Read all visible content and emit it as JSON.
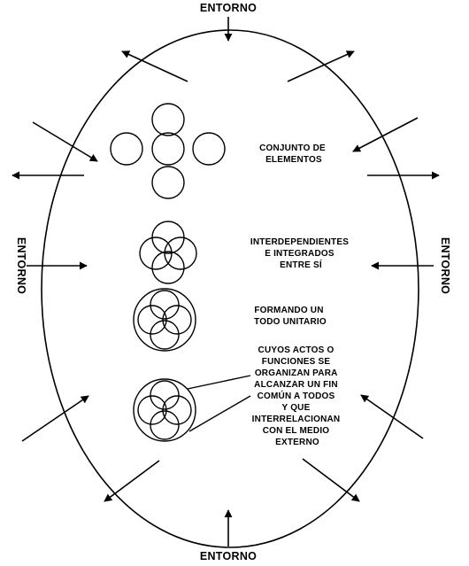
{
  "diagram": {
    "entorno": {
      "top": "ENTORNO",
      "bottom": "ENTORNO",
      "left": "ENTORNO",
      "right": "ENTORNO"
    },
    "stages": [
      {
        "name": "conjunto",
        "lines": [
          "CONJUNTO DE",
          "ELEMENTOS"
        ]
      },
      {
        "name": "interdependientes",
        "lines": [
          "INTERDEPENDIENTES",
          "E INTEGRADOS",
          "ENTRE SÍ"
        ]
      },
      {
        "name": "todo-unitario",
        "lines": [
          "FORMANDO UN",
          "TODO UNITARIO"
        ]
      },
      {
        "name": "fin-comun",
        "lines": [
          "CUYOS ACTOS O",
          "FUNCIONES SE",
          "ORGANIZAN PARA",
          "ALCANZAR UN FIN",
          "COMÚN A TODOS",
          "Y QUE",
          "INTERRELACIONAN",
          "CON EL MEDIO",
          "EXTERNO"
        ]
      }
    ],
    "colors": {
      "ink": "#000000",
      "background": "#ffffff"
    }
  }
}
